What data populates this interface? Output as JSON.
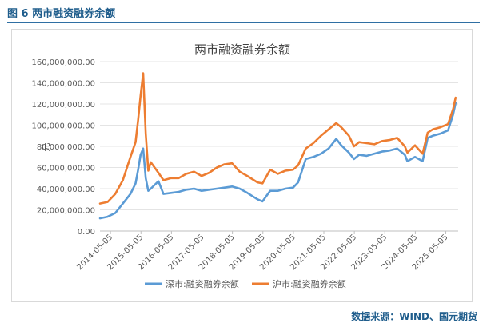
{
  "figure": {
    "caption": "图 6  两市融资融券余额",
    "source": "数据来源：WIND、国元期货"
  },
  "chart_data": {
    "type": "line",
    "title": "两市融资融券余额",
    "ylabel": "元",
    "ylim": [
      0,
      160000000
    ],
    "ytick_labels": [
      "0.00",
      "20,000,000.00",
      "40,000,000.00",
      "60,000,000.00",
      "80,000,000.00",
      "100,000,000.00",
      "120,000,000.00",
      "140,000,000.00",
      "160,000,000.00"
    ],
    "xtick_labels": [
      "2014-05-05",
      "2015-05-05",
      "2016-05-05",
      "2017-05-05",
      "2018-05-05",
      "2019-05-05",
      "2020-05-05",
      "2021-05-05",
      "2022-05-05",
      "2023-05-05",
      "2024-05-05",
      "2025-05-05"
    ],
    "x": [
      "2014-01",
      "2014-04",
      "2014-07",
      "2014-10",
      "2015-01",
      "2015-03",
      "2015-04",
      "2015-05",
      "2015-06",
      "2015-07",
      "2015-08",
      "2015-09",
      "2015-12",
      "2016-02",
      "2016-05",
      "2016-08",
      "2016-11",
      "2017-02",
      "2017-05",
      "2017-08",
      "2017-11",
      "2018-02",
      "2018-05",
      "2018-08",
      "2018-11",
      "2019-01",
      "2019-03",
      "2019-05",
      "2019-08",
      "2019-11",
      "2020-02",
      "2020-05",
      "2020-07",
      "2020-10",
      "2021-01",
      "2021-04",
      "2021-07",
      "2021-10",
      "2021-12",
      "2022-03",
      "2022-05",
      "2022-07",
      "2022-10",
      "2023-01",
      "2023-04",
      "2023-07",
      "2023-10",
      "2024-01",
      "2024-02",
      "2024-05",
      "2024-08",
      "2024-10",
      "2024-12",
      "2025-03",
      "2025-06",
      "2025-08",
      "2025-09"
    ],
    "series": [
      {
        "name": "深市:融资融券余额",
        "color": "#5b9bd5",
        "values": [
          12000000,
          13500000,
          17000000,
          26000000,
          35000000,
          45000000,
          58000000,
          72000000,
          78000000,
          50000000,
          38000000,
          40000000,
          47000000,
          35000000,
          36000000,
          37000000,
          39000000,
          40000000,
          38000000,
          39000000,
          40000000,
          41000000,
          42000000,
          40000000,
          36000000,
          33000000,
          30000000,
          28000000,
          38000000,
          38000000,
          40000000,
          41000000,
          46000000,
          68000000,
          70000000,
          73000000,
          78000000,
          87000000,
          81000000,
          74000000,
          68000000,
          72000000,
          71000000,
          73000000,
          75000000,
          76000000,
          78000000,
          72000000,
          66000000,
          70000000,
          66000000,
          88000000,
          90000000,
          92000000,
          95000000,
          110000000,
          121000000
        ]
      },
      {
        "name": "沪市:融资融券余额",
        "color": "#ed7d31",
        "values": [
          26000000,
          27500000,
          35000000,
          48000000,
          70000000,
          84000000,
          105000000,
          128000000,
          149000000,
          92000000,
          57000000,
          65000000,
          55000000,
          48000000,
          50000000,
          50000000,
          54000000,
          56000000,
          52000000,
          55000000,
          60000000,
          63000000,
          64000000,
          56000000,
          52000000,
          49000000,
          46000000,
          45000000,
          58000000,
          54000000,
          57000000,
          58000000,
          62000000,
          78000000,
          83000000,
          90000000,
          96000000,
          102000000,
          98000000,
          90000000,
          80000000,
          84000000,
          83000000,
          82000000,
          85000000,
          86000000,
          88000000,
          80000000,
          74000000,
          81000000,
          73000000,
          93000000,
          96000000,
          98000000,
          101000000,
          115000000,
          126000000
        ]
      }
    ],
    "legend_position": "bottom",
    "grid": "horizontal"
  }
}
